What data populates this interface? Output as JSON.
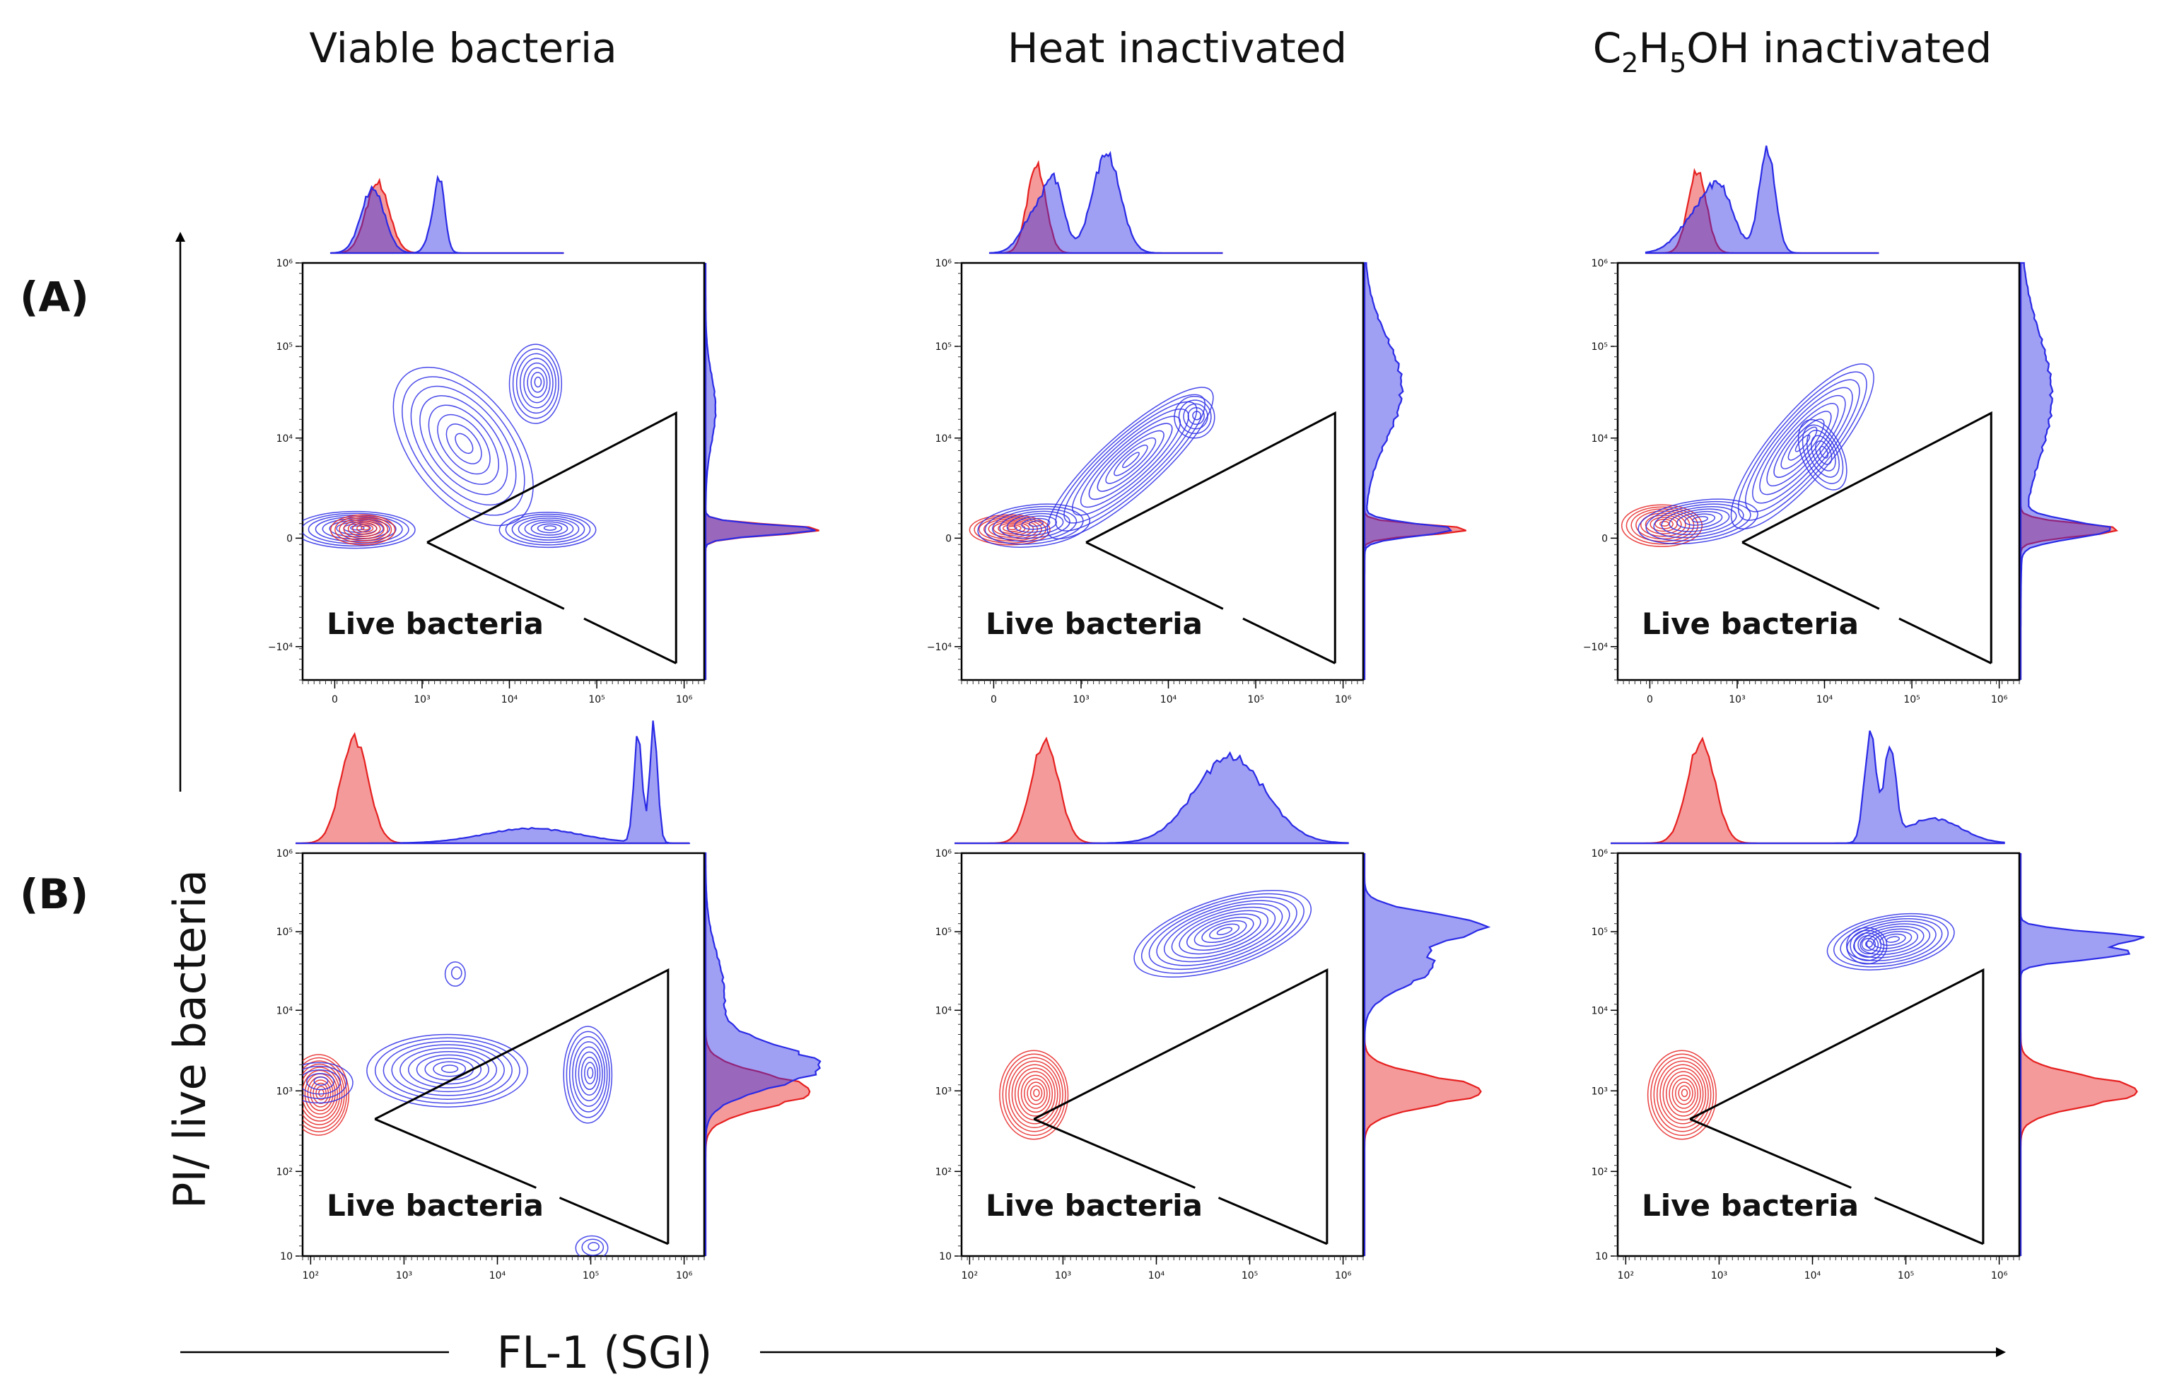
{
  "figure": {
    "column_titles": [
      "Viable bacteria",
      "Heat inactivated",
      "C2H5OH inactivated"
    ],
    "row_labels": [
      "(A)",
      "(B)"
    ],
    "x_axis_label": "FL-1 (SGI)",
    "y_axis_label": "PI/ live bacteria",
    "gate_label": "Live bacteria"
  },
  "colors": {
    "stained": "#2a2ae6",
    "control": "#e62020",
    "gate": "#000000"
  },
  "chart_data": [
    {
      "type": "contour",
      "row": "(A)",
      "column": "Viable bacteria",
      "x_ticks": [
        "0",
        "10³",
        "10⁴",
        "10⁵",
        "10⁶"
      ],
      "y_ticks": [
        "10⁶",
        "10⁵",
        "10⁴",
        "0",
        "−10⁴"
      ],
      "xlim": [
        -1000,
        1000000
      ],
      "ylim": [
        -10000,
        1000000
      ],
      "series": [
        {
          "name": "control (red)",
          "populations": [
            {
              "x": 300,
              "y": 200
            }
          ]
        },
        {
          "name": "stained (blue)",
          "populations": [
            {
              "x": 200,
              "y": 200
            },
            {
              "x": 30000,
              "y": 15000
            },
            {
              "x": 50000,
              "y": 150
            }
          ]
        }
      ],
      "gate": "Live bacteria"
    },
    {
      "type": "contour",
      "row": "(A)",
      "column": "Heat inactivated",
      "x_ticks": [
        "0",
        "10³",
        "10⁴",
        "10⁵",
        "10⁶"
      ],
      "y_ticks": [
        "10⁶",
        "10⁵",
        "10⁴",
        "0",
        "−10⁴"
      ],
      "xlim": [
        -1000,
        1000000
      ],
      "ylim": [
        -10000,
        1000000
      ],
      "series": [
        {
          "name": "control (red)",
          "populations": [
            {
              "x": 300,
              "y": 200
            }
          ]
        },
        {
          "name": "stained (blue)",
          "populations": [
            {
              "x": 500,
              "y": 200
            },
            {
              "x": 10000,
              "y": 3000
            },
            {
              "x": 50000,
              "y": 12000
            }
          ]
        }
      ],
      "gate": "Live bacteria"
    },
    {
      "type": "contour",
      "row": "(A)",
      "column": "C2H5OH inactivated",
      "x_ticks": [
        "0",
        "10³",
        "10⁴",
        "10⁵",
        "10⁶"
      ],
      "y_ticks": [
        "10⁶",
        "10⁵",
        "10⁴",
        "0",
        "−10⁴"
      ],
      "xlim": [
        -1000,
        1000000
      ],
      "ylim": [
        -10000,
        1000000
      ],
      "series": [
        {
          "name": "control (red)",
          "populations": [
            {
              "x": 300,
              "y": 150
            }
          ]
        },
        {
          "name": "stained (blue)",
          "populations": [
            {
              "x": 2000,
              "y": 300
            },
            {
              "x": 20000,
              "y": 5000
            }
          ]
        }
      ],
      "gate": "Live bacteria"
    },
    {
      "type": "contour",
      "row": "(B)",
      "column": "Viable bacteria",
      "x_ticks": [
        "10²",
        "10³",
        "10⁴",
        "10⁵",
        "10⁶"
      ],
      "y_ticks": [
        "10⁶",
        "10⁵",
        "10⁴",
        "10³",
        "10²",
        "10"
      ],
      "xlim": [
        50,
        1000000
      ],
      "ylim": [
        10,
        1000000
      ],
      "series": [
        {
          "name": "control (red)",
          "populations": [
            {
              "x": 300,
              "y": 1000
            }
          ]
        },
        {
          "name": "stained (blue)",
          "populations": [
            {
              "x": 30000,
              "y": 2000
            },
            {
              "x": 350000,
              "y": 1500
            }
          ]
        }
      ],
      "gate": "Live bacteria"
    },
    {
      "type": "contour",
      "row": "(B)",
      "column": "Heat inactivated",
      "x_ticks": [
        "10²",
        "10³",
        "10⁴",
        "10⁵",
        "10⁶"
      ],
      "y_ticks": [
        "10⁶",
        "10⁵",
        "10⁴",
        "10³",
        "10²",
        "10"
      ],
      "xlim": [
        50,
        1000000
      ],
      "ylim": [
        10,
        1000000
      ],
      "series": [
        {
          "name": "control (red)",
          "populations": [
            {
              "x": 300,
              "y": 1000
            }
          ]
        },
        {
          "name": "stained (blue)",
          "populations": [
            {
              "x": 100000,
              "y": 100000
            }
          ]
        }
      ],
      "gate": "Live bacteria"
    },
    {
      "type": "contour",
      "row": "(B)",
      "column": "C2H5OH inactivated",
      "x_ticks": [
        "10²",
        "10³",
        "10⁴",
        "10⁵",
        "10⁶"
      ],
      "y_ticks": [
        "10⁶",
        "10⁵",
        "10⁴",
        "10³",
        "10²",
        "10"
      ],
      "xlim": [
        50,
        1000000
      ],
      "ylim": [
        10,
        1000000
      ],
      "series": [
        {
          "name": "control (red)",
          "populations": [
            {
              "x": 300,
              "y": 1000
            }
          ]
        },
        {
          "name": "stained (blue)",
          "populations": [
            {
              "x": 60000,
              "y": 80000
            }
          ]
        }
      ],
      "gate": "Live bacteria"
    }
  ]
}
